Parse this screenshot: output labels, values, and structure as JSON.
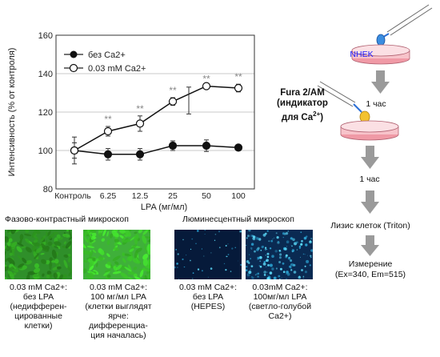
{
  "chart_data": {
    "type": "line",
    "categories": [
      "Контроль",
      "6.25",
      "12.5",
      "25",
      "50",
      "100"
    ],
    "xlabel": "LPA (мг/мл)",
    "ylabel": "Интенсивность (% от контроля)",
    "ylim": [
      80,
      160
    ],
    "yticks": [
      80,
      100,
      120,
      140,
      160
    ],
    "grid": true,
    "legend_position": "top-left",
    "series": [
      {
        "name": "без Ca2+",
        "marker": "filled",
        "values": [
          100,
          98,
          98,
          102.5,
          102.5,
          101.5
        ],
        "errors": [
          4,
          3,
          3,
          2.5,
          3,
          0
        ]
      },
      {
        "name": "0.03 mM Ca2+",
        "marker": "open",
        "values": [
          100,
          110,
          114,
          125.5,
          133.5,
          132.5
        ],
        "errors": [
          7,
          2.5,
          4,
          2,
          0,
          2
        ]
      }
    ],
    "extra_errorbar": {
      "x_position": "between 25 and 50",
      "value": 126,
      "error": 7
    },
    "significance": [
      {
        "category": "6.25",
        "label": "**"
      },
      {
        "category": "12.5",
        "label": "**"
      },
      {
        "category": "25",
        "label": "**"
      },
      {
        "category": "50",
        "label": "**"
      },
      {
        "category": "100",
        "label": "**"
      }
    ]
  },
  "sections": {
    "phase_contrast": "Фазово-контрастный микроскоп",
    "fluorescence": "Люминесцентный микроскоп"
  },
  "captions": {
    "img1": [
      "0.03 mM Ca2+:",
      "без LPA",
      "(недифферен-",
      "цированные",
      "клетки)"
    ],
    "img2": [
      "0.03 mM Ca2+:",
      "100 мг/мл LPA",
      "(клетки выглядят",
      "ярче:",
      "дифференциа-",
      "ция началась)"
    ],
    "img3": [
      "0.03 mM Ca2+:",
      "без LPA",
      "(HEPES)"
    ],
    "img4": [
      "0.03mM Ca2+:",
      "100мг/мл LPA",
      "(светло-голубой",
      "Ca2+)"
    ]
  },
  "flow": {
    "nhek": "NHEK",
    "fura": [
      "Fura 2/AM",
      "(индикатор",
      "для Ca"
    ],
    "fura_sup": "2+",
    "fura_tail": ")",
    "step1": "1 час",
    "step2": "1 час",
    "lysis": "Лизис клеток (Triton)",
    "measure": [
      "Измерение",
      "(Ex=340, Em=515)"
    ]
  },
  "colors": {
    "phase_green": "#2fa52a",
    "fluo_dark": "#061a3a",
    "fluo_cyan": "#5fe0ff",
    "dish_pink": "#f09aa6",
    "arrow_gray": "#9a9a9a",
    "pipette_blue": "#2b6fd6",
    "pipette_yellow": "#f2c230",
    "nhek_blue": "#1a1aff"
  }
}
